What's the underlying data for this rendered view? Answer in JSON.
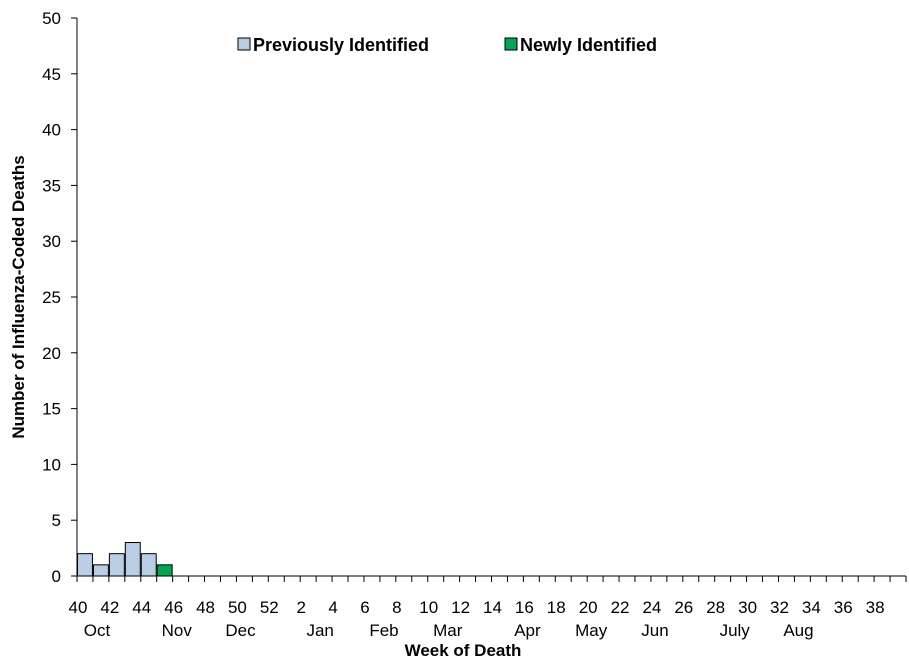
{
  "chart_data": {
    "type": "bar",
    "stacked": true,
    "xlabel": "Week of Death",
    "ylabel": "Number of Influenza-Coded Deaths",
    "ylim": [
      0,
      50
    ],
    "yticks": [
      0,
      5,
      10,
      15,
      20,
      25,
      30,
      35,
      40,
      45,
      50
    ],
    "grid": false,
    "legend_position": "top-center",
    "weeks": [
      40,
      41,
      42,
      43,
      44,
      45,
      46,
      47,
      48,
      49,
      50,
      51,
      52,
      1,
      2,
      3,
      4,
      5,
      6,
      7,
      8,
      9,
      10,
      11,
      12,
      13,
      14,
      15,
      16,
      17,
      18,
      19,
      20,
      21,
      22,
      23,
      24,
      25,
      26,
      27,
      28,
      29,
      30,
      31,
      32,
      33,
      34,
      35,
      36,
      37,
      38,
      39
    ],
    "week_tick_labels": [
      "40",
      "42",
      "44",
      "46",
      "48",
      "50",
      "52",
      "2",
      "4",
      "6",
      "8",
      "10",
      "12",
      "14",
      "16",
      "18",
      "20",
      "22",
      "24",
      "26",
      "28",
      "30",
      "32",
      "34",
      "36",
      "38"
    ],
    "month_labels": [
      {
        "label": "Oct",
        "week_index": 0
      },
      {
        "label": "Nov",
        "week_index": 5
      },
      {
        "label": "Dec",
        "week_index": 9
      },
      {
        "label": "Jan",
        "week_index": 14
      },
      {
        "label": "Feb",
        "week_index": 18
      },
      {
        "label": "Mar",
        "week_index": 22
      },
      {
        "label": "Apr",
        "week_index": 27
      },
      {
        "label": "May",
        "week_index": 31
      },
      {
        "label": "Jun",
        "week_index": 35
      },
      {
        "label": "July",
        "week_index": 40
      },
      {
        "label": "Aug",
        "week_index": 44
      }
    ],
    "series": [
      {
        "name": "Previously Identified",
        "color": "#b9cde5",
        "values": [
          2,
          1,
          2,
          3,
          2,
          0,
          0,
          0,
          0,
          0,
          0,
          0,
          0,
          0,
          0,
          0,
          0,
          0,
          0,
          0,
          0,
          0,
          0,
          0,
          0,
          0,
          0,
          0,
          0,
          0,
          0,
          0,
          0,
          0,
          0,
          0,
          0,
          0,
          0,
          0,
          0,
          0,
          0,
          0,
          0,
          0,
          0,
          0,
          0,
          0,
          0,
          0
        ]
      },
      {
        "name": "Newly Identified",
        "color": "#00a651",
        "values": [
          0,
          0,
          0,
          0,
          0,
          1,
          0,
          0,
          0,
          0,
          0,
          0,
          0,
          0,
          0,
          0,
          0,
          0,
          0,
          0,
          0,
          0,
          0,
          0,
          0,
          0,
          0,
          0,
          0,
          0,
          0,
          0,
          0,
          0,
          0,
          0,
          0,
          0,
          0,
          0,
          0,
          0,
          0,
          0,
          0,
          0,
          0,
          0,
          0,
          0,
          0,
          0
        ]
      }
    ]
  }
}
